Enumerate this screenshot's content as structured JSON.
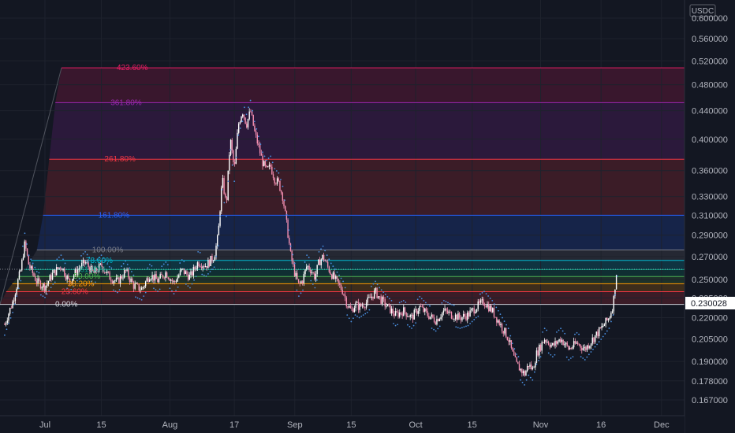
{
  "chart_data": {
    "type": "candlestick",
    "currency": "USDC",
    "ylim": [
      0.16,
      0.61
    ],
    "y_scale": "log",
    "y_ticks": [
      "0.600000",
      "0.560000",
      "0.520000",
      "0.480000",
      "0.440000",
      "0.400000",
      "0.360000",
      "0.330000",
      "0.310000",
      "0.290000",
      "0.270000",
      "0.250000",
      "0.235000",
      "0.220000",
      "0.205000",
      "0.190000",
      "0.178000",
      "0.167000"
    ],
    "x_ticks": [
      "Jul",
      "15",
      "Aug",
      "17",
      "Sep",
      "15",
      "Oct",
      "15",
      "Nov",
      "16",
      "Dec"
    ],
    "x_tick_days": [
      0,
      14,
      31,
      47,
      62,
      76,
      92,
      106,
      123,
      138,
      153
    ],
    "last_price": "0.230028",
    "fib_levels": [
      {
        "label": "0.00%",
        "value": 0.23,
        "color": "#d1d4dc"
      },
      {
        "label": "23.60%",
        "value": 0.24,
        "color": "#f23645"
      },
      {
        "label": "38.20%",
        "value": 0.2465,
        "color": "#ff9800"
      },
      {
        "label": "50.00%",
        "value": 0.2525,
        "color": "#4caf50"
      },
      {
        "label": "61.80%",
        "value": 0.2585,
        "color": "#089981"
      },
      {
        "label": "78.60%",
        "value": 0.2665,
        "color": "#00bcd4"
      },
      {
        "label": "100.00%",
        "value": 0.276,
        "color": "#787b86"
      },
      {
        "label": "161.80%",
        "value": 0.31,
        "color": "#2962ff"
      },
      {
        "label": "261.80%",
        "value": 0.374,
        "color": "#f23645"
      },
      {
        "label": "361.80%",
        "value": 0.452,
        "color": "#9c27b0"
      },
      {
        "label": "423.60%",
        "value": 0.508,
        "color": "#e91e63"
      }
    ],
    "price_path": [
      [
        -10,
        0.215
      ],
      [
        -8,
        0.232
      ],
      [
        -6,
        0.258
      ],
      [
        -5,
        0.282
      ],
      [
        -4,
        0.262
      ],
      [
        -2,
        0.248
      ],
      [
        0,
        0.244
      ],
      [
        2,
        0.255
      ],
      [
        4,
        0.262
      ],
      [
        6,
        0.248
      ],
      [
        8,
        0.258
      ],
      [
        10,
        0.265
      ],
      [
        12,
        0.255
      ],
      [
        14,
        0.262
      ],
      [
        16,
        0.252
      ],
      [
        18,
        0.248
      ],
      [
        20,
        0.257
      ],
      [
        22,
        0.245
      ],
      [
        24,
        0.242
      ],
      [
        26,
        0.254
      ],
      [
        28,
        0.249
      ],
      [
        30,
        0.256
      ],
      [
        32,
        0.247
      ],
      [
        34,
        0.258
      ],
      [
        36,
        0.252
      ],
      [
        38,
        0.265
      ],
      [
        40,
        0.262
      ],
      [
        42,
        0.27
      ],
      [
        43,
        0.29
      ],
      [
        44,
        0.35
      ],
      [
        45,
        0.32
      ],
      [
        46,
        0.4
      ],
      [
        47,
        0.36
      ],
      [
        48,
        0.42
      ],
      [
        49,
        0.44
      ],
      [
        50,
        0.42
      ],
      [
        51,
        0.44
      ],
      [
        52,
        0.41
      ],
      [
        53,
        0.39
      ],
      [
        54,
        0.37
      ],
      [
        55,
        0.36
      ],
      [
        56,
        0.365
      ],
      [
        57,
        0.35
      ],
      [
        58,
        0.345
      ],
      [
        59,
        0.33
      ],
      [
        60,
        0.3
      ],
      [
        61,
        0.27
      ],
      [
        62,
        0.255
      ],
      [
        63,
        0.245
      ],
      [
        64,
        0.25
      ],
      [
        65,
        0.262
      ],
      [
        66,
        0.258
      ],
      [
        67,
        0.252
      ],
      [
        68,
        0.265
      ],
      [
        69,
        0.27
      ],
      [
        70,
        0.262
      ],
      [
        71,
        0.255
      ],
      [
        72,
        0.25
      ],
      [
        73,
        0.245
      ],
      [
        74,
        0.24
      ],
      [
        75,
        0.23
      ],
      [
        76,
        0.225
      ],
      [
        77,
        0.23
      ],
      [
        78,
        0.228
      ],
      [
        80,
        0.232
      ],
      [
        82,
        0.24
      ],
      [
        83,
        0.235
      ],
      [
        85,
        0.228
      ],
      [
        87,
        0.222
      ],
      [
        89,
        0.225
      ],
      [
        91,
        0.22
      ],
      [
        93,
        0.228
      ],
      [
        95,
        0.222
      ],
      [
        97,
        0.218
      ],
      [
        99,
        0.225
      ],
      [
        101,
        0.222
      ],
      [
        103,
        0.22
      ],
      [
        105,
        0.222
      ],
      [
        107,
        0.228
      ],
      [
        109,
        0.232
      ],
      [
        111,
        0.225
      ],
      [
        113,
        0.215
      ],
      [
        115,
        0.205
      ],
      [
        116,
        0.195
      ],
      [
        117,
        0.188
      ],
      [
        118,
        0.185
      ],
      [
        119,
        0.182
      ],
      [
        120,
        0.188
      ],
      [
        121,
        0.185
      ],
      [
        122,
        0.195
      ],
      [
        124,
        0.205
      ],
      [
        126,
        0.2
      ],
      [
        128,
        0.205
      ],
      [
        130,
        0.198
      ],
      [
        132,
        0.202
      ],
      [
        134,
        0.198
      ],
      [
        136,
        0.205
      ],
      [
        138,
        0.212
      ],
      [
        140,
        0.22
      ],
      [
        141,
        0.23
      ],
      [
        142,
        0.262
      ]
    ]
  }
}
